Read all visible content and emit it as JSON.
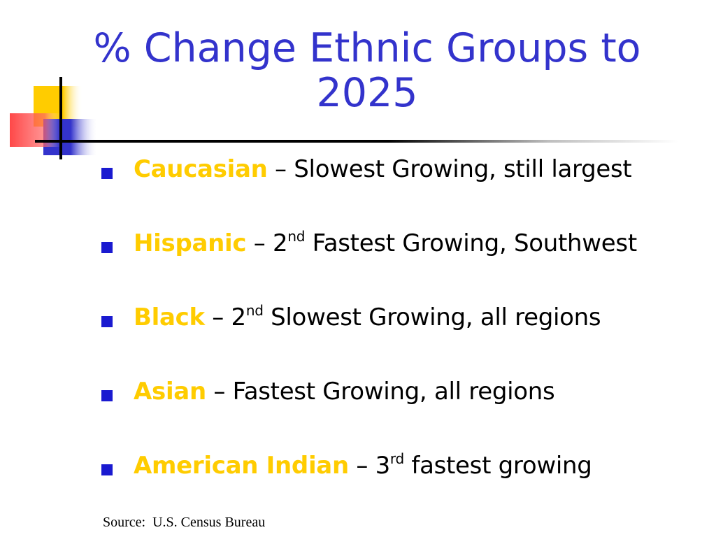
{
  "slide": {
    "title_line1": "% Change Ethnic Groups to",
    "title_line2": "2025",
    "colors": {
      "title": "#3333cc",
      "highlight": "#ffcc00",
      "bullet_marker": "#1a1ad0"
    },
    "bullets": [
      {
        "name": "Caucasian",
        "dash": " – ",
        "rest": "Slowest Growing, still largest"
      },
      {
        "name": "Hispanic",
        "dash": " – ",
        "ordinal_num": "2",
        "ordinal_sup": "nd",
        "rest": " Fastest Growing, Southwest"
      },
      {
        "name": "Black",
        "dash": " – ",
        "ordinal_num": "2",
        "ordinal_sup": "nd",
        "rest": " Slowest Growing, all regions"
      },
      {
        "name": "Asian",
        "dash": " – ",
        "rest": "Fastest Growing, all regions"
      },
      {
        "name": "American Indian",
        "dash": " – ",
        "ordinal_num": "3",
        "ordinal_sup": "rd",
        "rest": " fastest growing"
      }
    ],
    "source": "Source:  U.S. Census Bureau"
  }
}
